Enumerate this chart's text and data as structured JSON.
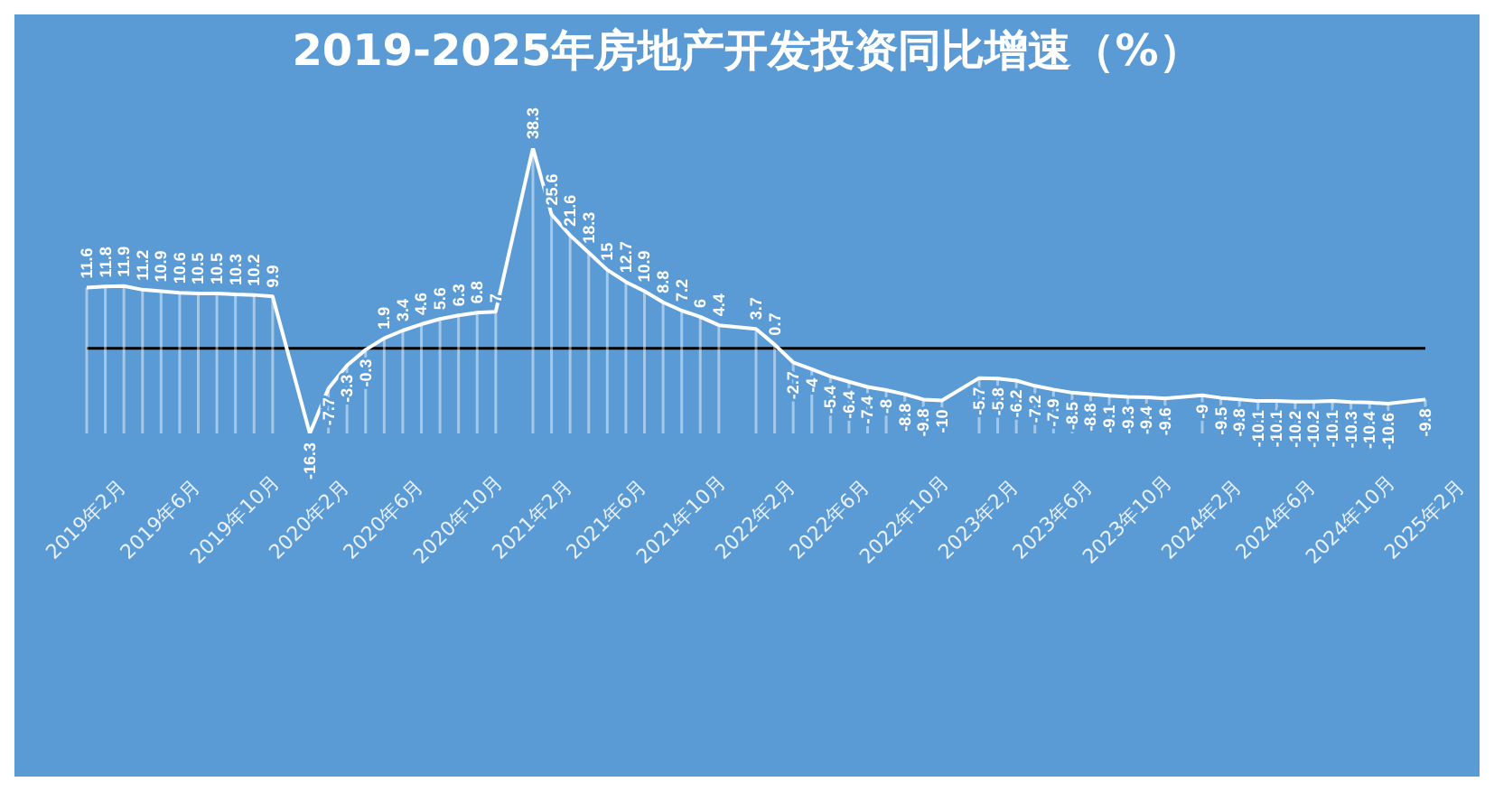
{
  "chart_data": {
    "type": "line",
    "title": "2019-2025年房地产开发投资同比增速（%）",
    "categories": [
      "2019年2月",
      null,
      null,
      null,
      "2019年6月",
      null,
      null,
      null,
      "2019年10月",
      null,
      null,
      null,
      "2020年2月",
      null,
      null,
      null,
      "2020年6月",
      null,
      null,
      null,
      "2020年10月",
      null,
      null,
      null,
      "2021年2月",
      null,
      null,
      null,
      "2021年6月",
      null,
      null,
      null,
      "2021年10月",
      null,
      null,
      null,
      "2022年2月",
      null,
      null,
      null,
      "2022年6月",
      null,
      null,
      null,
      "2022年10月",
      null,
      null,
      null,
      "2023年2月",
      null,
      null,
      null,
      "2023年6月",
      null,
      null,
      null,
      "2023年10月",
      null,
      null,
      null,
      "2024年2月",
      null,
      null,
      null,
      "2024年6月",
      null,
      null,
      null,
      "2024年10月",
      null,
      null,
      null,
      "2025年2月"
    ],
    "series": [
      {
        "color": "#ffffff",
        "values": [
          11.6,
          11.8,
          11.9,
          11.2,
          10.9,
          10.6,
          10.5,
          10.5,
          10.3,
          10.2,
          9.9,
          null,
          -16.3,
          -7.7,
          -3.3,
          -0.3,
          1.9,
          3.4,
          4.6,
          5.6,
          6.3,
          6.8,
          7,
          null,
          38.3,
          25.6,
          21.6,
          18.3,
          15,
          12.7,
          10.9,
          8.8,
          7.2,
          6,
          4.4,
          null,
          3.7,
          0.7,
          -2.7,
          -4,
          -5.4,
          -6.4,
          -7.4,
          -8,
          -8.8,
          -9.8,
          -10,
          null,
          -5.7,
          -5.8,
          -6.2,
          -7.2,
          -7.9,
          -8.5,
          -8.8,
          -9.1,
          -9.3,
          -9.4,
          -9.6,
          null,
          -9,
          -9.5,
          -9.8,
          -10.1,
          -10.1,
          -10.2,
          -10.2,
          -10.1,
          -10.3,
          -10.4,
          -10.6,
          null,
          -9.8
        ]
      }
    ],
    "data_labels": true
  }
}
